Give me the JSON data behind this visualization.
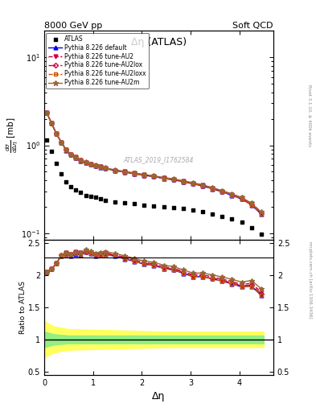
{
  "title_left": "8000 GeV pp",
  "title_right": "Soft QCD",
  "plot_title": "Δη (ATLAS)",
  "xlabel": "Δη",
  "ylabel_ratio": "Ratio to ATLAS",
  "right_label_top": "Rivet 3.1.10, ≥ 400k events",
  "right_label_bottom": "mcplots.cern.ch [arXiv:1306.3436]",
  "watermark": "ATLAS_2019_I1762584",
  "atlas_x": [
    0.05,
    0.15,
    0.25,
    0.35,
    0.45,
    0.55,
    0.65,
    0.75,
    0.85,
    0.95,
    1.05,
    1.15,
    1.25,
    1.45,
    1.65,
    1.85,
    2.05,
    2.25,
    2.45,
    2.65,
    2.85,
    3.05,
    3.25,
    3.45,
    3.65,
    3.85,
    4.05,
    4.25,
    4.45
  ],
  "atlas_y": [
    1.15,
    0.85,
    0.62,
    0.47,
    0.38,
    0.34,
    0.31,
    0.29,
    0.27,
    0.26,
    0.255,
    0.245,
    0.235,
    0.225,
    0.22,
    0.215,
    0.21,
    0.205,
    0.2,
    0.195,
    0.19,
    0.185,
    0.175,
    0.165,
    0.155,
    0.145,
    0.135,
    0.115,
    0.098
  ],
  "mc_x": [
    0.05,
    0.15,
    0.25,
    0.35,
    0.45,
    0.55,
    0.65,
    0.75,
    0.85,
    0.95,
    1.05,
    1.15,
    1.25,
    1.45,
    1.65,
    1.85,
    2.05,
    2.25,
    2.45,
    2.65,
    2.85,
    3.05,
    3.25,
    3.45,
    3.65,
    3.85,
    4.05,
    4.25,
    4.45
  ],
  "default_y": [
    2.35,
    1.78,
    1.35,
    1.08,
    0.88,
    0.78,
    0.72,
    0.67,
    0.635,
    0.605,
    0.585,
    0.565,
    0.545,
    0.515,
    0.495,
    0.475,
    0.455,
    0.44,
    0.42,
    0.405,
    0.385,
    0.365,
    0.345,
    0.32,
    0.295,
    0.27,
    0.245,
    0.21,
    0.165
  ],
  "au2_y": [
    2.35,
    1.78,
    1.35,
    1.08,
    0.89,
    0.79,
    0.73,
    0.68,
    0.64,
    0.61,
    0.59,
    0.57,
    0.55,
    0.52,
    0.5,
    0.48,
    0.46,
    0.445,
    0.425,
    0.41,
    0.39,
    0.37,
    0.35,
    0.325,
    0.3,
    0.275,
    0.25,
    0.215,
    0.17
  ],
  "au2lox_y": [
    2.35,
    1.78,
    1.35,
    1.085,
    0.885,
    0.785,
    0.725,
    0.675,
    0.638,
    0.608,
    0.587,
    0.568,
    0.548,
    0.518,
    0.498,
    0.478,
    0.458,
    0.442,
    0.422,
    0.407,
    0.387,
    0.367,
    0.347,
    0.322,
    0.297,
    0.272,
    0.247,
    0.212,
    0.167
  ],
  "au2loxx_y": [
    2.35,
    1.78,
    1.35,
    1.082,
    0.882,
    0.782,
    0.722,
    0.672,
    0.636,
    0.606,
    0.585,
    0.565,
    0.545,
    0.515,
    0.495,
    0.475,
    0.455,
    0.44,
    0.42,
    0.405,
    0.385,
    0.365,
    0.345,
    0.32,
    0.295,
    0.27,
    0.245,
    0.21,
    0.165
  ],
  "au2m_y": [
    2.35,
    1.78,
    1.35,
    1.08,
    0.89,
    0.79,
    0.73,
    0.68,
    0.645,
    0.615,
    0.595,
    0.575,
    0.555,
    0.525,
    0.505,
    0.485,
    0.465,
    0.45,
    0.43,
    0.415,
    0.395,
    0.375,
    0.355,
    0.33,
    0.305,
    0.28,
    0.255,
    0.22,
    0.175
  ],
  "ratio_band_x": [
    0.0,
    0.1,
    0.2,
    0.5,
    1.0,
    1.5,
    2.0,
    2.5,
    3.0,
    3.5,
    4.0,
    4.5
  ],
  "ratio_band_green_lo": [
    0.88,
    0.9,
    0.92,
    0.94,
    0.94,
    0.94,
    0.94,
    0.94,
    0.94,
    0.94,
    0.94,
    0.94
  ],
  "ratio_band_green_hi": [
    1.12,
    1.1,
    1.08,
    1.06,
    1.06,
    1.06,
    1.06,
    1.06,
    1.06,
    1.06,
    1.06,
    1.06
  ],
  "ratio_band_yellow_lo": [
    0.72,
    0.76,
    0.8,
    0.84,
    0.85,
    0.86,
    0.87,
    0.88,
    0.88,
    0.88,
    0.88,
    0.88
  ],
  "ratio_band_yellow_hi": [
    1.28,
    1.24,
    1.2,
    1.16,
    1.15,
    1.14,
    1.13,
    1.12,
    1.12,
    1.12,
    1.12,
    1.12
  ],
  "color_default": "#0000ee",
  "color_au2": "#cc0044",
  "color_au2lox": "#cc0044",
  "color_au2loxx": "#cc5500",
  "color_au2m": "#996633",
  "ylim_main": [
    0.085,
    20.0
  ],
  "ylim_ratio": [
    0.45,
    2.55
  ],
  "xlim": [
    0.0,
    4.7
  ],
  "ratio_divider": 2.27
}
